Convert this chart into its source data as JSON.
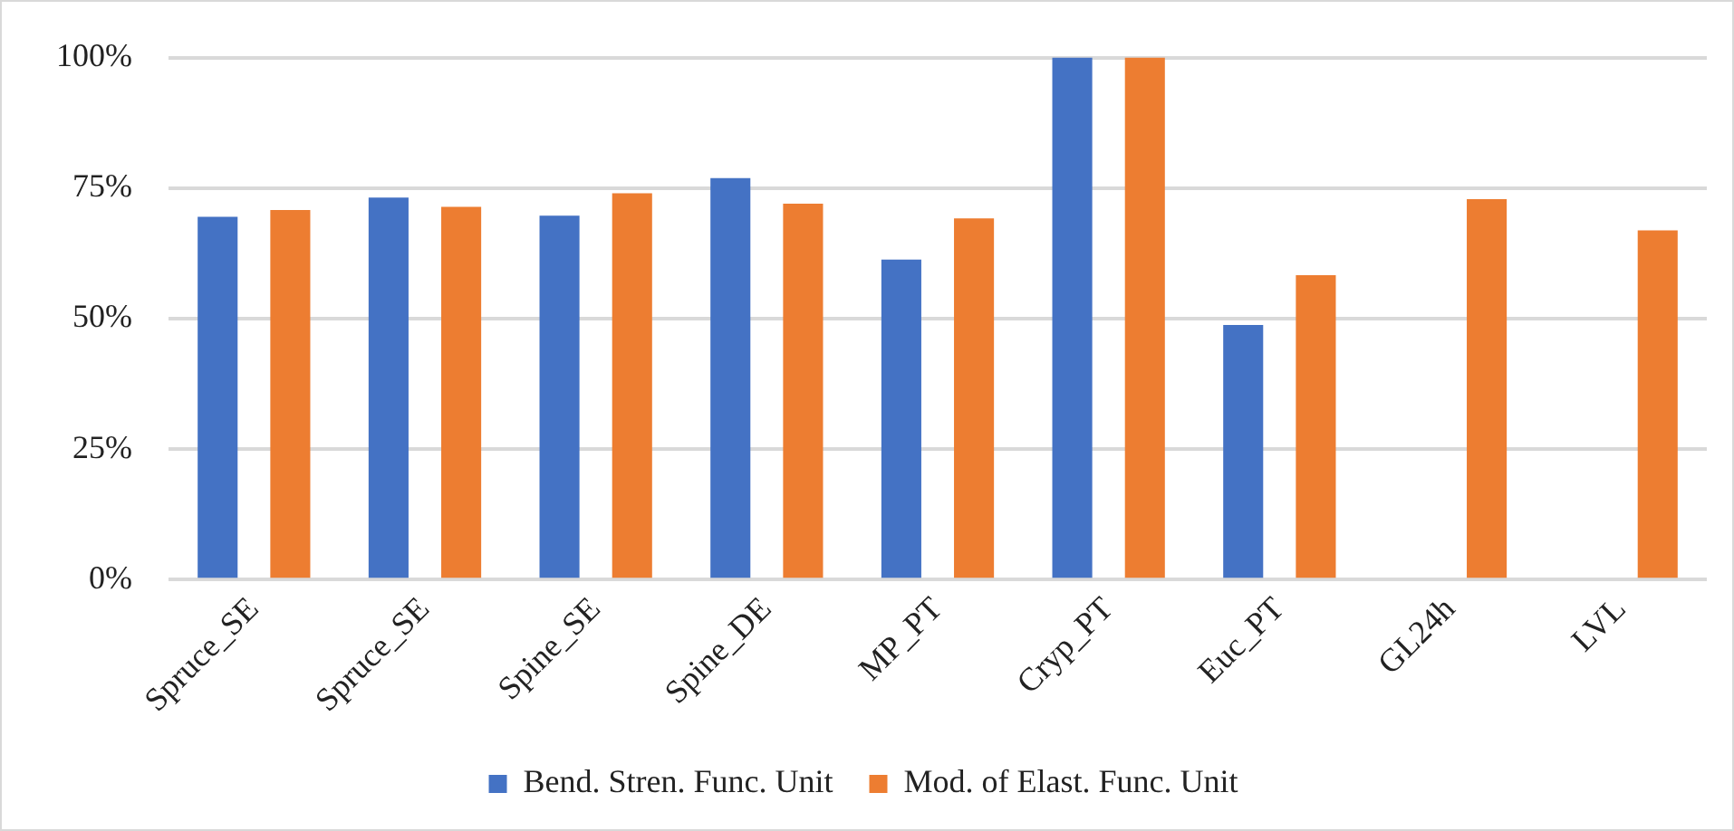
{
  "chart_data": {
    "type": "bar",
    "categories": [
      "Spruce_SE",
      "Spruce_SE",
      "Spine_SE",
      "Spine_DE",
      "MP_PT",
      "Cryp_PT",
      "Euc_PT",
      "GL24h",
      "LVL"
    ],
    "series": [
      {
        "name": "Bend. Stren. Func. Unit",
        "color": "#4472c4",
        "values": [
          69.5,
          73.2,
          69.7,
          76.9,
          61.3,
          100,
          48.8,
          null,
          null
        ]
      },
      {
        "name": "Mod. of Elast. Func. Unit",
        "color": "#ed7d31",
        "values": [
          70.8,
          71.4,
          74.0,
          72.0,
          69.2,
          100,
          58.3,
          72.9,
          66.9
        ]
      }
    ],
    "ylim": [
      0,
      100
    ],
    "yticks": [
      {
        "value": 0,
        "label": "0%"
      },
      {
        "value": 25,
        "label": "25%"
      },
      {
        "value": 50,
        "label": "50%"
      },
      {
        "value": 75,
        "label": "75%"
      },
      {
        "value": 100,
        "label": "100%"
      }
    ],
    "grid": "y",
    "legend": "bottom"
  }
}
